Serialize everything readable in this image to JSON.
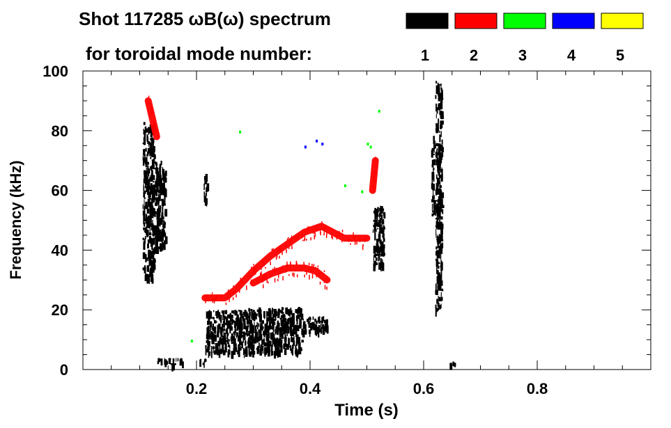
{
  "chart_data": {
    "type": "heatmap",
    "title": "Shot 117285 ωB(ω) spectrum",
    "subtitle": "for toroidal mode number:",
    "xlabel": "Time (s)",
    "ylabel": "Frequency (kHz)",
    "xlim": [
      0.0,
      1.0
    ],
    "ylim": [
      0,
      100
    ],
    "xticks": [
      0.2,
      0.4,
      0.6,
      0.8
    ],
    "xtick_labels": [
      "0.2",
      "0.4",
      "0.6",
      "0.8"
    ],
    "yticks": [
      0,
      20,
      40,
      60,
      80,
      100
    ],
    "ytick_labels": [
      "0",
      "20",
      "40",
      "60",
      "80",
      "100"
    ],
    "legend_placement": "top-right",
    "legend": [
      {
        "label": "1",
        "color": "#000000"
      },
      {
        "label": "2",
        "color": "#ff0000"
      },
      {
        "label": "3",
        "color": "#00ff00"
      },
      {
        "label": "4",
        "color": "#0000ff"
      },
      {
        "label": "5",
        "color": "#ffff00"
      }
    ],
    "series": [
      {
        "name": "n=1",
        "color": "#000000",
        "regions": [
          {
            "t": [
              0.105,
              0.125
            ],
            "f": [
              30,
              83
            ]
          },
          {
            "t": [
              0.125,
              0.145
            ],
            "f": [
              40,
              70
            ]
          },
          {
            "t": [
              0.13,
              0.175
            ],
            "f": [
              2,
              4
            ]
          },
          {
            "t": [
              0.205,
              0.215
            ],
            "f": [
              2,
              4
            ]
          },
          {
            "t": [
              0.212,
              0.218
            ],
            "f": [
              56,
              66
            ]
          },
          {
            "t": [
              0.215,
              0.29
            ],
            "f": [
              6,
              20
            ]
          },
          {
            "t": [
              0.29,
              0.385
            ],
            "f": [
              6,
              21
            ]
          },
          {
            "t": [
              0.385,
              0.43
            ],
            "f": [
              13,
              18
            ]
          },
          {
            "t": [
              0.51,
              0.53
            ],
            "f": [
              35,
              55
            ]
          },
          {
            "t": [
              0.613,
              0.618
            ],
            "f": [
              50,
              80
            ]
          },
          {
            "t": [
              0.62,
              0.632
            ],
            "f": [
              20,
              97
            ]
          },
          {
            "t": [
              0.645,
              0.655
            ],
            "f": [
              1,
              3
            ]
          }
        ]
      },
      {
        "name": "n=2",
        "color": "#ff0000",
        "lines": [
          {
            "t": [
              0.115,
              0.13
            ],
            "f": [
              90,
              78
            ]
          },
          {
            "t": [
              0.215,
              0.25,
              0.27,
              0.3,
              0.33,
              0.36,
              0.39,
              0.42,
              0.46,
              0.5
            ],
            "f": [
              24,
              24,
              27,
              33,
              38,
              42,
              46,
              48,
              44,
              44
            ]
          },
          {
            "t": [
              0.3,
              0.33,
              0.36,
              0.39,
              0.41,
              0.43
            ],
            "f": [
              29,
              32,
              34,
              34,
              33,
              30
            ]
          },
          {
            "t": [
              0.51,
              0.515
            ],
            "f": [
              60,
              70
            ]
          }
        ]
      },
      {
        "name": "n=3",
        "color": "#00ff00",
        "points": [
          {
            "t": [
              0.19,
              0.275,
              0.46,
              0.49,
              0.5,
              0.505,
              0.52
            ],
            "f": [
              10,
              80,
              62,
              60,
              76,
              75,
              87
            ]
          }
        ]
      },
      {
        "name": "n=4",
        "color": "#0000ff",
        "points": [
          {
            "t": [
              0.39,
              0.41,
              0.42
            ],
            "f": [
              75,
              77,
              76
            ]
          }
        ]
      },
      {
        "name": "n=5",
        "color": "#ffff00",
        "points": []
      }
    ]
  }
}
